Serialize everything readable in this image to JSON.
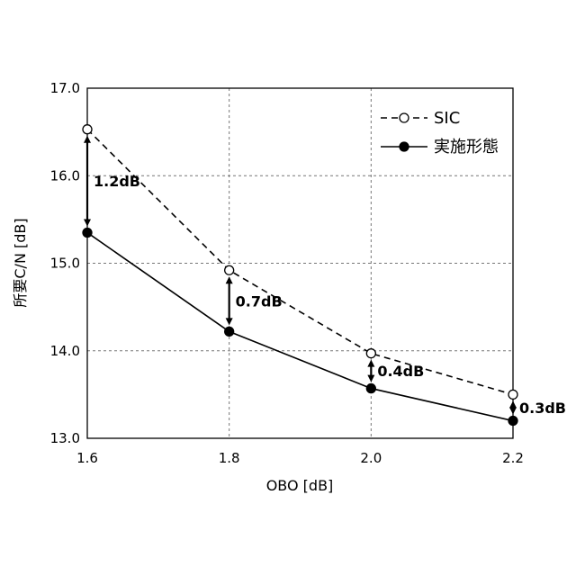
{
  "chart_data": {
    "type": "line",
    "xlabel": "OBO [dB]",
    "ylabel": "所要C/N [dB]",
    "x": [
      1.6,
      1.8,
      2.0,
      2.2
    ],
    "x_ticks": [
      "1.6",
      "1.8",
      "2.0",
      "2.2"
    ],
    "y_ticks": [
      "13.0",
      "14.0",
      "15.0",
      "16.0",
      "17.0"
    ],
    "xlim": [
      1.6,
      2.2
    ],
    "ylim": [
      13.0,
      17.0
    ],
    "grid": true,
    "legend_position": "top-right",
    "series": [
      {
        "name": "SIC",
        "values": [
          16.53,
          14.92,
          13.97,
          13.5
        ],
        "line": "dashed",
        "marker": "open-circle"
      },
      {
        "name": "実施形態",
        "values": [
          15.35,
          14.22,
          13.57,
          13.2
        ],
        "line": "solid",
        "marker": "filled-circle"
      }
    ],
    "annotations": [
      {
        "x": 1.6,
        "text": "1.2dB"
      },
      {
        "x": 1.8,
        "text": "0.7dB"
      },
      {
        "x": 2.0,
        "text": "0.4dB"
      },
      {
        "x": 2.2,
        "text": "0.3dB"
      }
    ]
  }
}
